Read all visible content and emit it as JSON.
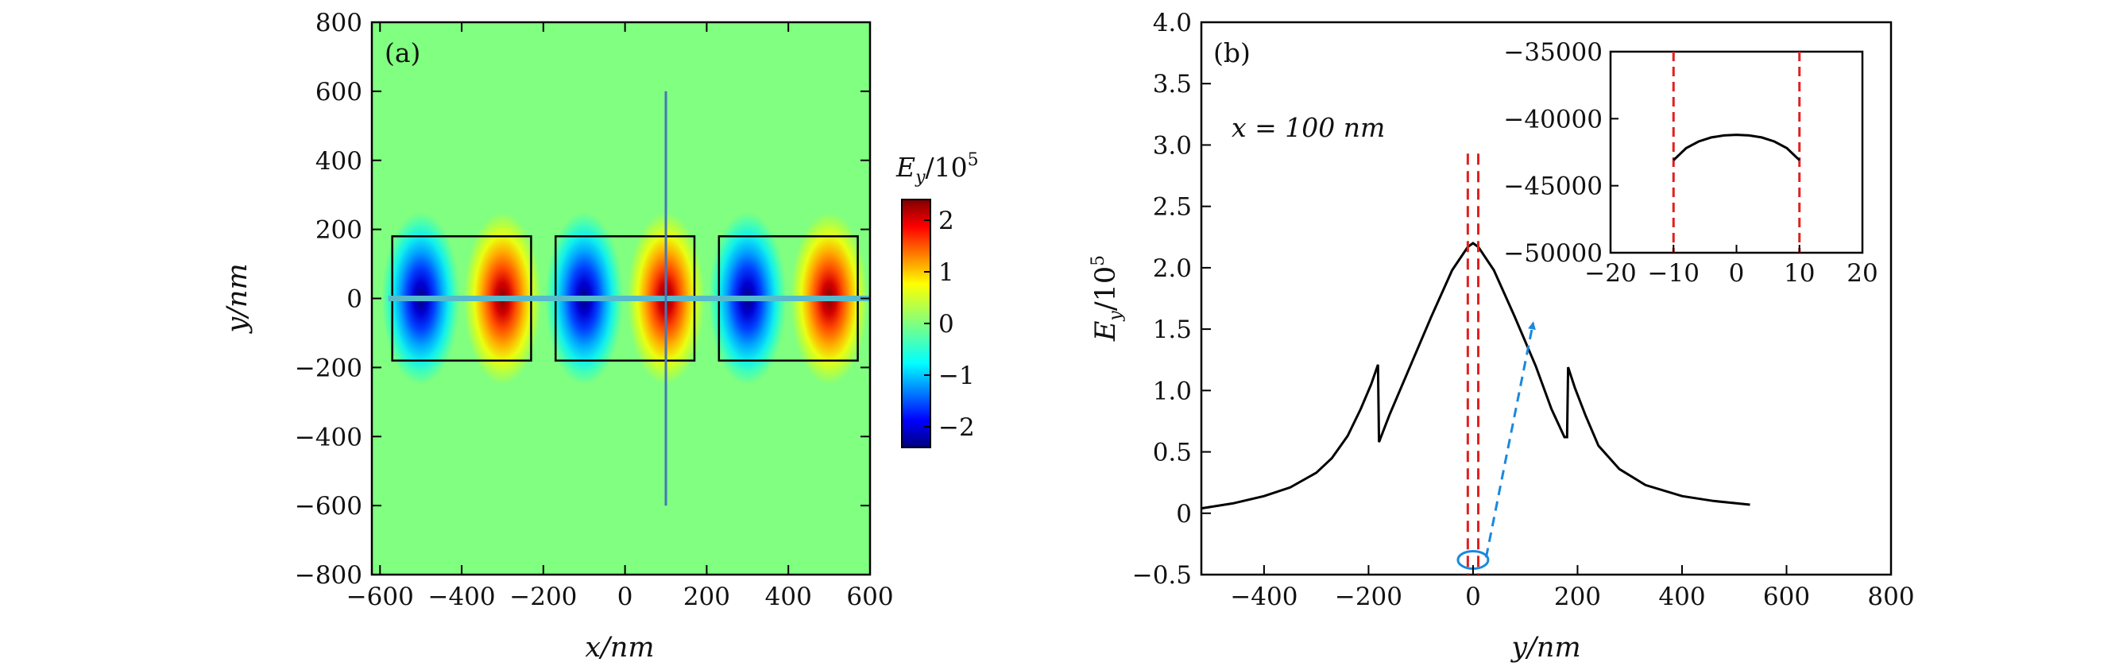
{
  "chart_data": [
    {
      "type": "heatmap",
      "panel_label": "(a)",
      "xlabel": "x/nm",
      "ylabel": "y/nm",
      "xlim": [
        -620,
        600
      ],
      "ylim": [
        -800,
        800
      ],
      "x_ticks": [
        -600,
        -400,
        -200,
        0,
        200,
        400,
        600
      ],
      "x_tick_labels": [
        "−600",
        "−400",
        "−200",
        "0",
        "200",
        "400",
        "600"
      ],
      "y_ticks": [
        800,
        600,
        400,
        200,
        0,
        -200,
        -400,
        -600,
        -800
      ],
      "y_tick_labels": [
        "800",
        "600",
        "400",
        "200",
        "0",
        "−200",
        "−400",
        "−600",
        "−800"
      ],
      "colorbar": {
        "title": "E_y/10^5",
        "title_parts": {
          "main": "E",
          "sub": "y",
          "mid": "/10",
          "sup": "5"
        },
        "range": [
          -2.4,
          2.4
        ],
        "ticks": [
          2,
          1,
          0,
          -1,
          -2
        ],
        "tick_labels": [
          "2",
          "1",
          "0",
          "−1",
          "−2"
        ],
        "colorscale": "jet"
      },
      "lobes": [
        {
          "x": -500,
          "y": 0,
          "value": -2.3
        },
        {
          "x": -300,
          "y": 0,
          "value": 2.3
        },
        {
          "x": -100,
          "y": 0,
          "value": -2.3
        },
        {
          "x": 100,
          "y": 0,
          "value": 2.3
        },
        {
          "x": 300,
          "y": 0,
          "value": -2.3
        },
        {
          "x": 500,
          "y": 0,
          "value": 2.3
        }
      ],
      "rectangles": [
        {
          "x0": -570,
          "x1": -230,
          "y0": -180,
          "y1": 180
        },
        {
          "x0": -170,
          "x1": 170,
          "y0": -180,
          "y1": 180
        },
        {
          "x0": 230,
          "x1": 570,
          "y0": -180,
          "y1": 180
        }
      ],
      "vertical_line": {
        "x": 100,
        "y0": -600,
        "y1": 600,
        "color": "#4477bb"
      },
      "horizontal_band": {
        "y": 0,
        "x0": -580,
        "x1": 600,
        "color": "#55bbcc"
      }
    },
    {
      "type": "line",
      "panel_label": "(b)",
      "annotation": "x = 100 nm",
      "xlabel": "y/nm",
      "ylabel": "E_y/10^5",
      "ylabel_parts": {
        "main": "E",
        "sub": "y",
        "mid": "/10",
        "sup": "5"
      },
      "xlim": [
        -520,
        800
      ],
      "ylim": [
        -0.5,
        4.0
      ],
      "x_ticks": [
        -400,
        -200,
        0,
        200,
        400,
        600,
        800
      ],
      "x_tick_labels": [
        "−400",
        "−200",
        "0",
        "200",
        "400",
        "600",
        "800"
      ],
      "y_ticks": [
        4.0,
        3.5,
        3.0,
        2.5,
        2.0,
        1.5,
        1.0,
        0.5,
        0,
        -0.5
      ],
      "y_tick_labels": [
        "4.0",
        "3.5",
        "3.0",
        "2.5",
        "2.0",
        "1.5",
        "1.0",
        "0.5",
        "0",
        "−0.5"
      ],
      "series": [
        {
          "color": "#000000",
          "x": [
            -520,
            -460,
            -400,
            -350,
            -300,
            -270,
            -240,
            -215,
            -195,
            -182,
            -180,
            -160,
            -120,
            -80,
            -40,
            -10,
            0,
            10,
            40,
            80,
            120,
            150,
            175,
            180,
            182,
            195,
            215,
            240,
            280,
            330,
            400,
            460,
            530
          ],
          "y": [
            0.04,
            0.08,
            0.14,
            0.21,
            0.33,
            0.45,
            0.63,
            0.85,
            1.05,
            1.21,
            0.58,
            0.8,
            1.2,
            1.6,
            1.98,
            2.17,
            2.2,
            2.17,
            1.98,
            1.6,
            1.2,
            0.85,
            0.62,
            0.62,
            1.19,
            1.02,
            0.8,
            0.55,
            0.36,
            0.23,
            0.14,
            0.1,
            0.07
          ]
        }
      ],
      "red_dashed_x": [
        -10,
        10
      ],
      "red_dashed_y_top": 2.93,
      "ellipse": {
        "x": 0,
        "y": -0.38,
        "color": "#1a88dd"
      },
      "arrow": {
        "from": [
          25,
          -0.36
        ],
        "to": [
          115,
          1.55
        ],
        "color": "#1a88dd"
      },
      "inset": {
        "type": "line",
        "xlim": [
          -20,
          20
        ],
        "ylim": [
          -50000,
          -35000
        ],
        "x_ticks": [
          -20,
          -10,
          0,
          10,
          20
        ],
        "x_tick_labels": [
          "−20",
          "−10",
          "0",
          "10",
          "20"
        ],
        "y_ticks": [
          -35000,
          -40000,
          -45000,
          -50000
        ],
        "y_tick_labels": [
          "−35000",
          "−40000",
          "−45000",
          "−50000"
        ],
        "series": [
          {
            "color": "#000000",
            "x": [
              -10,
              -8,
              -6,
              -4,
              -2,
              0,
              2,
              4,
              6,
              8,
              10
            ],
            "y": [
              -43100,
              -42200,
              -41700,
              -41400,
              -41250,
              -41200,
              -41250,
              -41400,
              -41700,
              -42200,
              -43100
            ]
          }
        ],
        "red_dashed_x": [
          -10,
          10
        ]
      }
    }
  ]
}
